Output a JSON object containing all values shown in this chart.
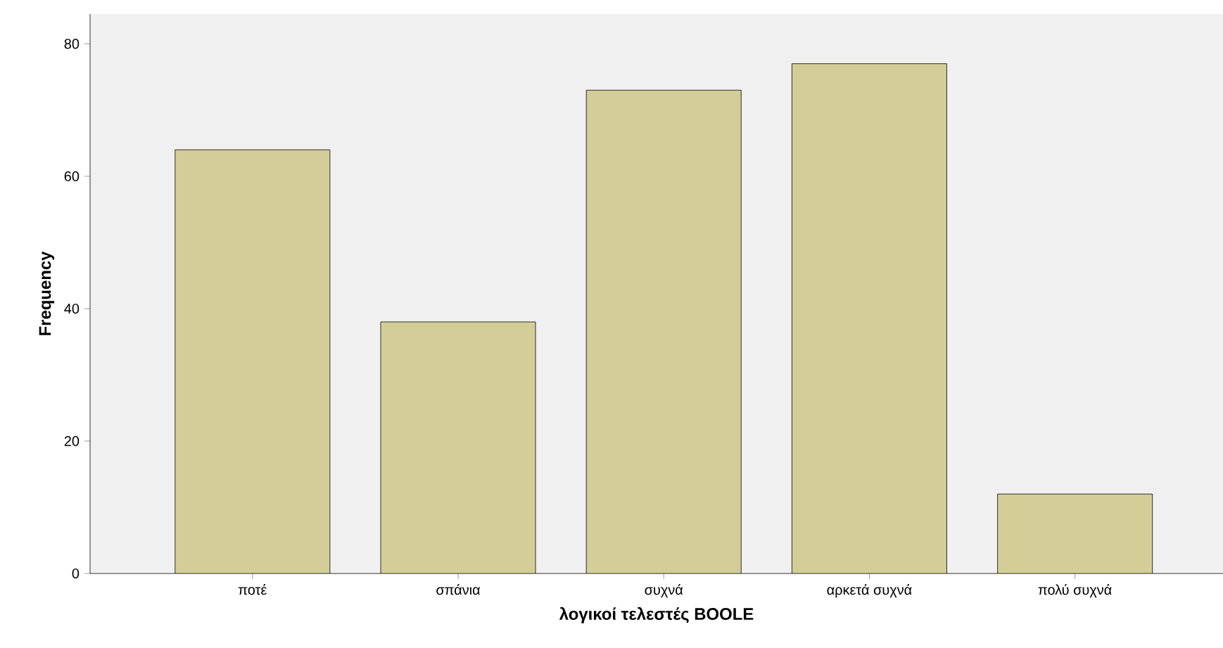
{
  "chart_data": {
    "type": "bar",
    "xlabel": "λογικοί τελεστές BOOLE",
    "ylabel": "Frequency",
    "categories": [
      "ποτέ",
      "σπάνια",
      "συχνά",
      "αρκετά συχνά",
      "πολύ συχνά"
    ],
    "values": [
      64,
      38,
      73,
      77,
      12
    ],
    "color": "#d3ce97",
    "ylim": [
      0,
      84.5
    ],
    "yticks": [
      0,
      20,
      40,
      60,
      80
    ]
  }
}
